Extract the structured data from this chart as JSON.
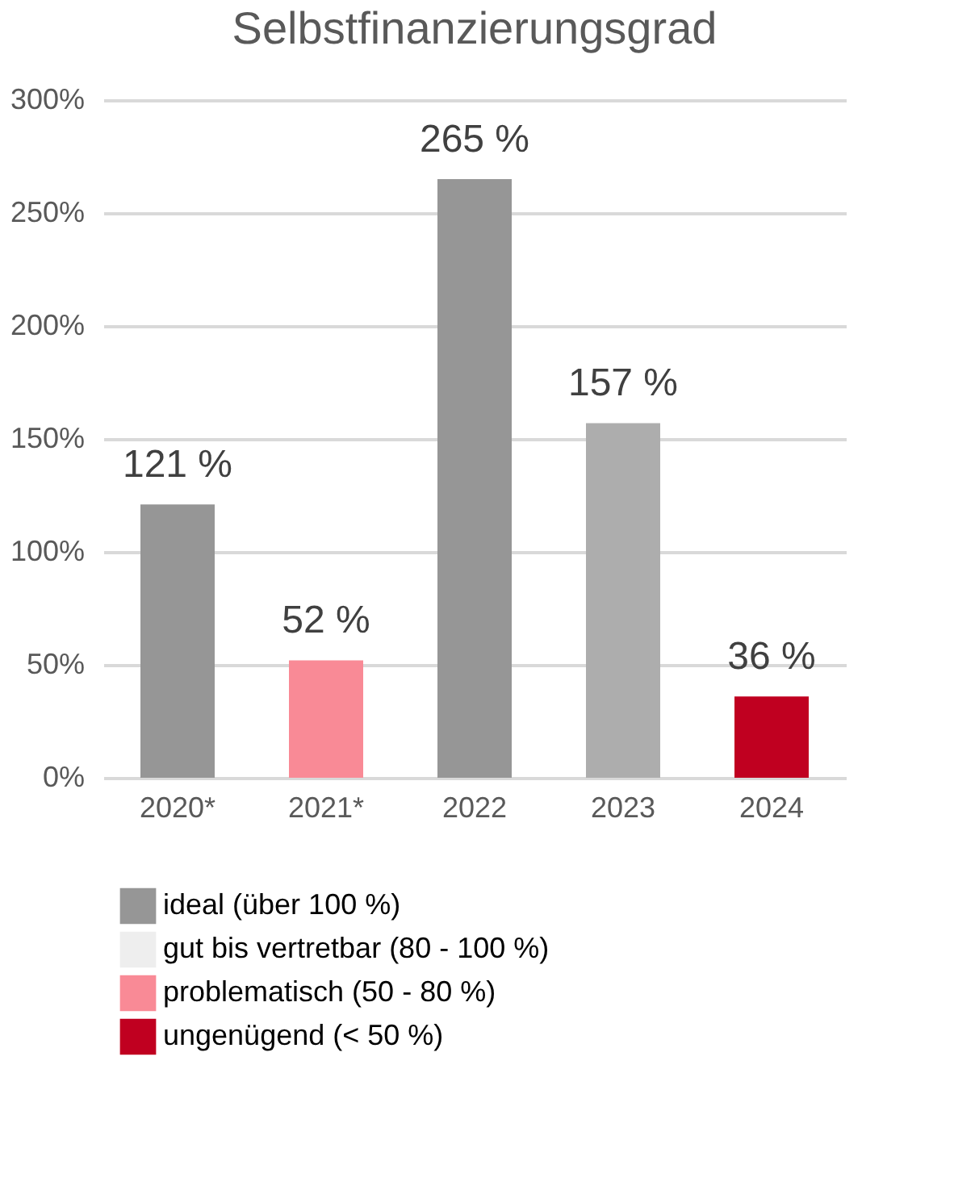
{
  "chart_data": {
    "type": "bar",
    "title": "Selbstfinanzierungsgrad",
    "categories": [
      "2020*",
      "2021*",
      "2022",
      "2023",
      "2024"
    ],
    "series": [
      {
        "name": "ideal (über 100 %)",
        "color": "#969696",
        "values": [
          121,
          null,
          265,
          null,
          null
        ],
        "value_labels": [
          "121 %",
          null,
          "265 %",
          null,
          null
        ]
      },
      {
        "name": "gut bis vertretbar (80 - 100 %)",
        "color": "#eeeeee",
        "values": [
          null,
          null,
          null,
          null,
          null
        ]
      },
      {
        "name": "problematisch (50 - 80 %)",
        "color": "#f98a96",
        "values": [
          null,
          52,
          null,
          null,
          null
        ],
        "value_labels": [
          null,
          "52 %",
          null,
          null,
          null
        ]
      },
      {
        "name": "ungenügend (< 50 %)",
        "color": "#c00020",
        "values": [
          null,
          null,
          null,
          null,
          36
        ],
        "value_labels": [
          null,
          null,
          null,
          null,
          "36 %"
        ]
      },
      {
        "color": "#adadad",
        "values": [
          null,
          null,
          null,
          157,
          null
        ],
        "value_labels": [
          null,
          null,
          null,
          "157 %",
          null
        ]
      }
    ],
    "ylim": [
      0,
      300
    ],
    "yticks": [
      {
        "value": 0,
        "label": "0%"
      },
      {
        "value": 50,
        "label": "50%"
      },
      {
        "value": 100,
        "label": "100%"
      },
      {
        "value": 150,
        "label": "150%"
      },
      {
        "value": 200,
        "label": "200%"
      },
      {
        "value": 250,
        "label": "250%"
      },
      {
        "value": 300,
        "label": "300%"
      }
    ],
    "grid": "y",
    "legend": "bottom"
  }
}
